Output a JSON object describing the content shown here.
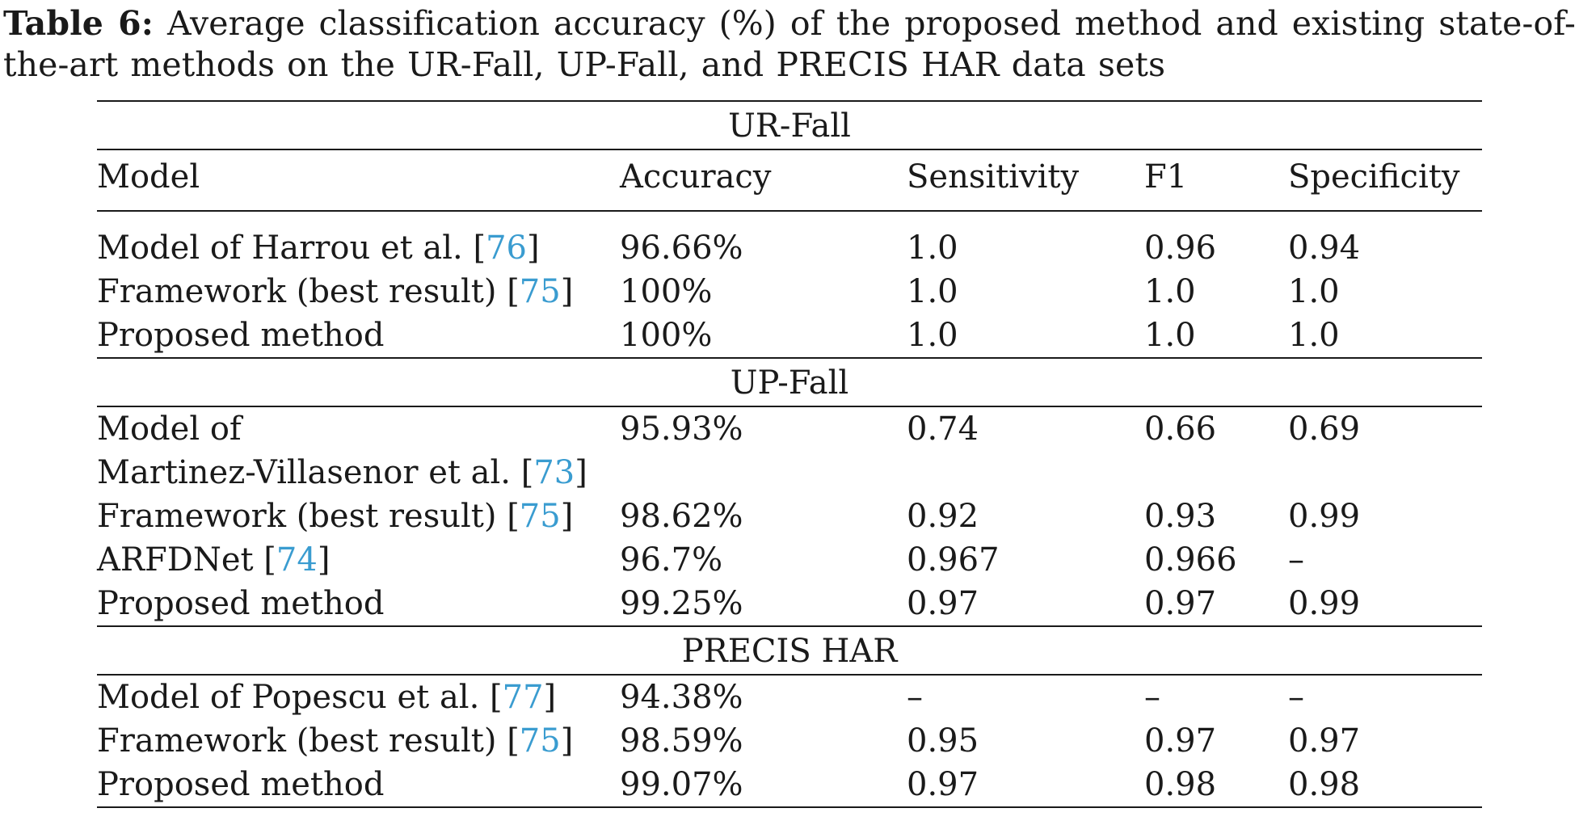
{
  "caption": {
    "label": "Table 6:",
    "text": "Average classification accuracy (%) of the proposed method and existing state-of-the-art methods on the UR-Fall, UP-Fall, and PRECIS HAR data sets"
  },
  "table": {
    "headers": [
      "Model",
      "Accuracy",
      "Sensitivity",
      "F1",
      "Specificity"
    ],
    "sections": [
      {
        "name": "UR-Fall",
        "rows": [
          {
            "model": "Model of Harrou et al. [",
            "ref": "76",
            "close": "]",
            "accuracy": "96.66%",
            "sensitivity": "1.0",
            "f1": "0.96",
            "specificity": "0.94"
          },
          {
            "model": "Framework (best result) [",
            "ref": "75",
            "close": "]",
            "accuracy": "100%",
            "sensitivity": "1.0",
            "f1": "1.0",
            "specificity": "1.0"
          },
          {
            "model": "Proposed method",
            "ref": "",
            "close": "",
            "accuracy": "100%",
            "sensitivity": "1.0",
            "f1": "1.0",
            "specificity": "1.0"
          }
        ]
      },
      {
        "name": "UP-Fall",
        "rows": [
          {
            "model": "Model of",
            "model_line2": "Martinez-Villasenor et al. [",
            "ref": "73",
            "close": "]",
            "accuracy": "95.93%",
            "sensitivity": "0.74",
            "f1": "0.66",
            "specificity": "0.69"
          },
          {
            "model": "Framework (best result) [",
            "ref": "75",
            "close": "]",
            "accuracy": "98.62%",
            "sensitivity": "0.92",
            "f1": "0.93",
            "specificity": "0.99"
          },
          {
            "model": "ARFDNet [",
            "ref": "74",
            "close": "]",
            "accuracy": "96.7%",
            "sensitivity": "0.967",
            "f1": "0.966",
            "specificity": "–"
          },
          {
            "model": "Proposed method",
            "ref": "",
            "close": "",
            "accuracy": "99.25%",
            "sensitivity": "0.97",
            "f1": "0.97",
            "specificity": "0.99"
          }
        ]
      },
      {
        "name": "PRECIS HAR",
        "rows": [
          {
            "model": "Model of Popescu et al. [",
            "ref": "77",
            "close": "]",
            "accuracy": "94.38%",
            "sensitivity": "–",
            "f1": "–",
            "specificity": "–"
          },
          {
            "model": "Framework (best result) [",
            "ref": "75",
            "close": "]",
            "accuracy": "98.59%",
            "sensitivity": "0.95",
            "f1": "0.97",
            "specificity": "0.97"
          },
          {
            "model": "Proposed method",
            "ref": "",
            "close": "",
            "accuracy": "99.07%",
            "sensitivity": "0.97",
            "f1": "0.98",
            "specificity": "0.98"
          }
        ]
      }
    ]
  },
  "colors": {
    "text": "#1a1a1a",
    "reference_link": "#3a9cd0"
  }
}
